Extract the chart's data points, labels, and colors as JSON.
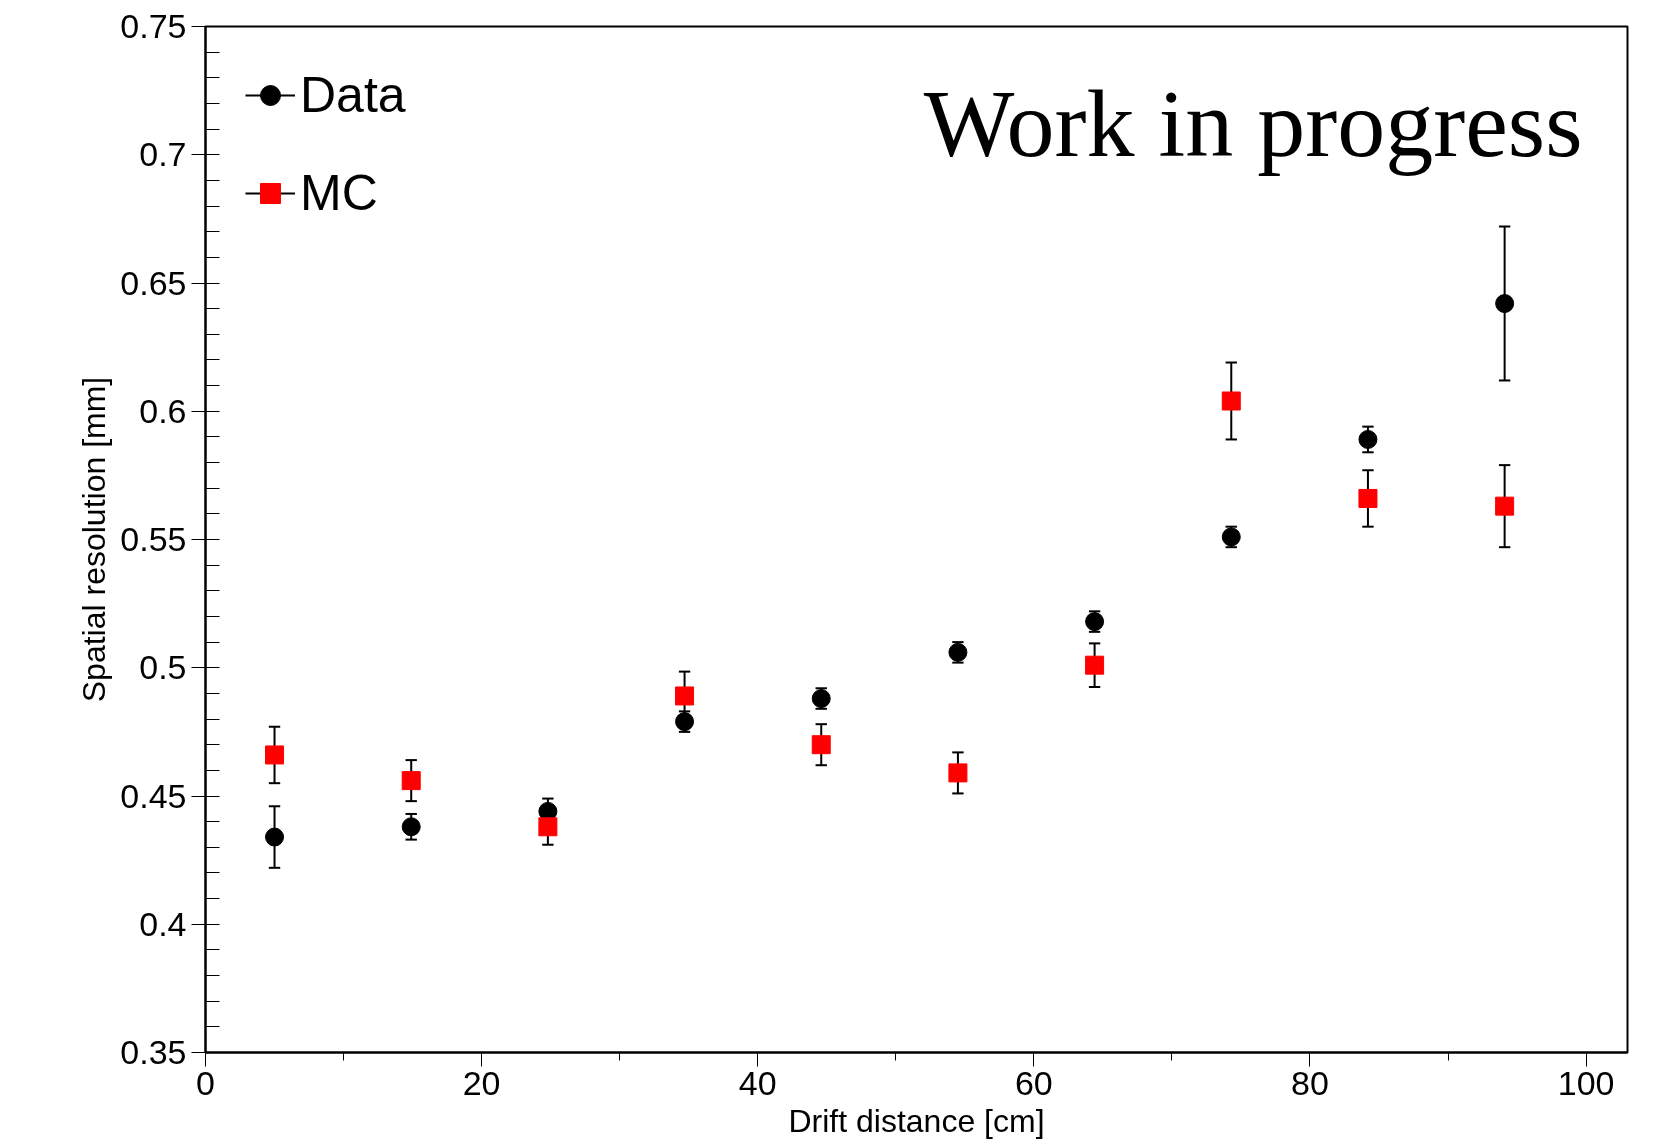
{
  "chart_data": {
    "type": "scatter",
    "xlabel": "Drift distance [cm]",
    "ylabel": "Spatial resolution [mm]",
    "x": [
      5,
      14.9,
      24.8,
      34.7,
      44.6,
      54.5,
      64.4,
      74.3,
      84.2,
      94.1
    ],
    "series": [
      {
        "name": "Data",
        "color": "#000000",
        "marker": "circle",
        "values": [
          0.434,
          0.438,
          0.444,
          0.479,
          0.488,
          0.506,
          0.518,
          0.551,
          0.589,
          0.642
        ],
        "errors": [
          0.012,
          0.005,
          0.005,
          0.004,
          0.004,
          0.004,
          0.004,
          0.004,
          0.005,
          0.03
        ]
      },
      {
        "name": "MC",
        "color": "#ff0000",
        "marker": "square",
        "values": [
          0.466,
          0.456,
          0.438,
          0.489,
          0.47,
          0.459,
          0.501,
          0.604,
          0.566,
          0.563
        ],
        "errors": [
          0.011,
          0.008,
          0.007,
          0.0095,
          0.008,
          0.008,
          0.0085,
          0.015,
          0.011,
          0.016
        ]
      }
    ],
    "xlim": [
      0,
      103
    ],
    "ylim": [
      0.35,
      0.75
    ],
    "xticks": [
      0,
      20,
      40,
      60,
      80,
      100
    ],
    "yticks": [
      0.35,
      0.4,
      0.45,
      0.5,
      0.55,
      0.6,
      0.65,
      0.7,
      0.75
    ],
    "grid": false,
    "legend": "top left",
    "annotations": [
      "Work in progress"
    ]
  }
}
